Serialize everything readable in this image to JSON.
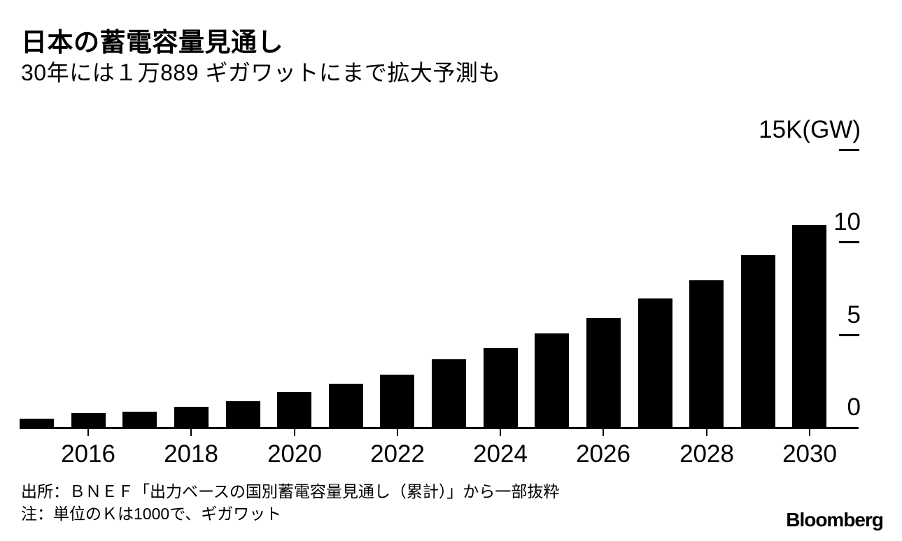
{
  "header": {
    "title": "日本の蓄電容量見通し",
    "subtitle": "30年には１万889 ギガワットにまで拡大予測も"
  },
  "chart_data": {
    "type": "bar",
    "title": "日本の蓄電容量見通し",
    "subtitle": "30年には１万889 ギガワットにまで拡大予測も",
    "unit": "K(GW)",
    "x": [
      2015,
      2016,
      2017,
      2018,
      2019,
      2020,
      2021,
      2022,
      2023,
      2024,
      2025,
      2026,
      2027,
      2028,
      2029,
      2030
    ],
    "values": [
      0.45,
      0.75,
      0.83,
      1.09,
      1.39,
      1.88,
      2.33,
      2.82,
      3.65,
      4.25,
      5.04,
      5.87,
      6.96,
      7.93,
      9.29,
      10.889
    ],
    "ylim": [
      0,
      15
    ],
    "yticks": [
      0,
      5,
      10,
      15
    ],
    "ytick_labels": [
      "0",
      "5",
      "10",
      "15K(GW)"
    ],
    "xtick_years": [
      2016,
      2018,
      2020,
      2022,
      2024,
      2026,
      2028,
      2030
    ],
    "xtick_labels": [
      "2016",
      "2018",
      "2020",
      "2022",
      "2024",
      "2026",
      "2028",
      "2030"
    ],
    "bar_color": "#000000",
    "axis_color": "#000000",
    "grid": false,
    "legend_position": "none"
  },
  "footer": {
    "source": "出所：ＢＮＥＦ「出力ベースの国別蓄電容量見通し（累計）」から一部抜粋",
    "note": "注：単位のＫは1000で、ギガワット",
    "brand": "Bloomberg"
  }
}
